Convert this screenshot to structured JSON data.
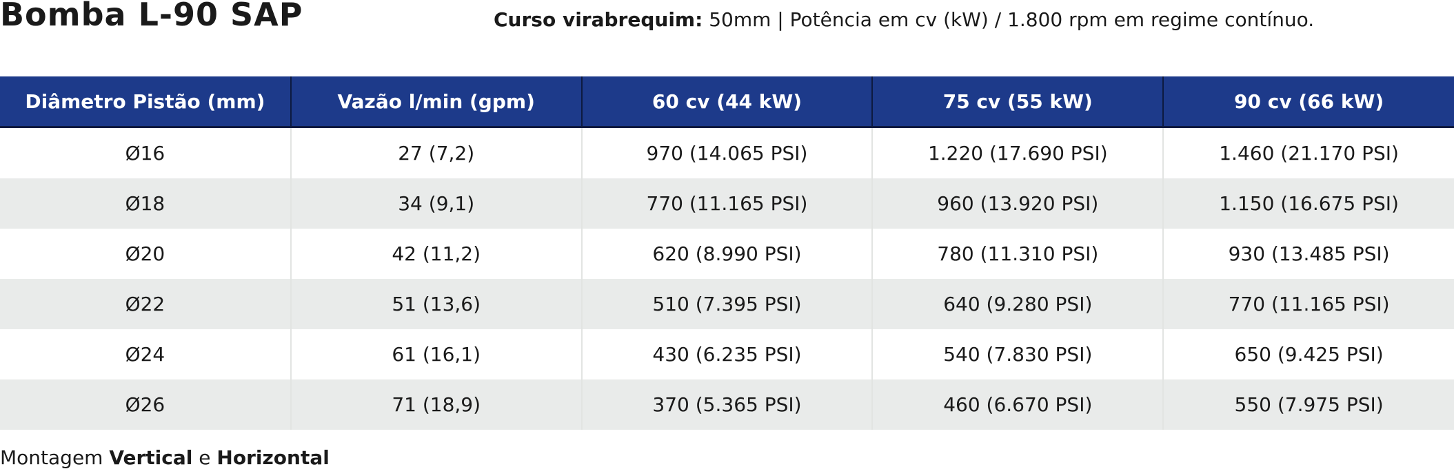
{
  "title": "Bomba L-90 SAP",
  "subtitle": {
    "label": "Curso virabrequim:",
    "text": " 50mm | Potência em cv (kW) / 1.800 rpm em regime contínuo."
  },
  "table": {
    "headers": [
      "Diâmetro Pistão (mm)",
      "Vazão l/min (gpm)",
      "60 cv (44 kW)",
      "75 cv (55 kW)",
      "90 cv (66 kW)"
    ],
    "rows": [
      [
        "Ø16",
        "27 (7,2)",
        "970 (14.065 PSI)",
        "1.220 (17.690 PSI)",
        "1.460 (21.170 PSI)"
      ],
      [
        "Ø18",
        "34 (9,1)",
        "770 (11.165 PSI)",
        "960 (13.920 PSI)",
        "1.150 (16.675 PSI)"
      ],
      [
        "Ø20",
        "42 (11,2)",
        "620 (8.990 PSI)",
        "780 (11.310 PSI)",
        "930 (13.485 PSI)"
      ],
      [
        "Ø22",
        "51 (13,6)",
        "510 (7.395 PSI)",
        "640 (9.280 PSI)",
        "770 (11.165 PSI)"
      ],
      [
        "Ø24",
        "61 (16,1)",
        "430 (6.235 PSI)",
        "540 (7.830 PSI)",
        "650 (9.425 PSI)"
      ],
      [
        "Ø26",
        "71 (18,9)",
        "370 (5.365 PSI)",
        "460 (6.670 PSI)",
        "550 (7.975 PSI)"
      ]
    ]
  },
  "footer": {
    "prefix": "Montagem ",
    "vertical": "Vertical",
    "connector": " e ",
    "horizontal": "Horizontal"
  },
  "colors": {
    "header_bg": "#1d3a8a",
    "header_text": "#ffffff",
    "row_alt_bg": "#e9ebea",
    "row_bg": "#ffffff"
  }
}
